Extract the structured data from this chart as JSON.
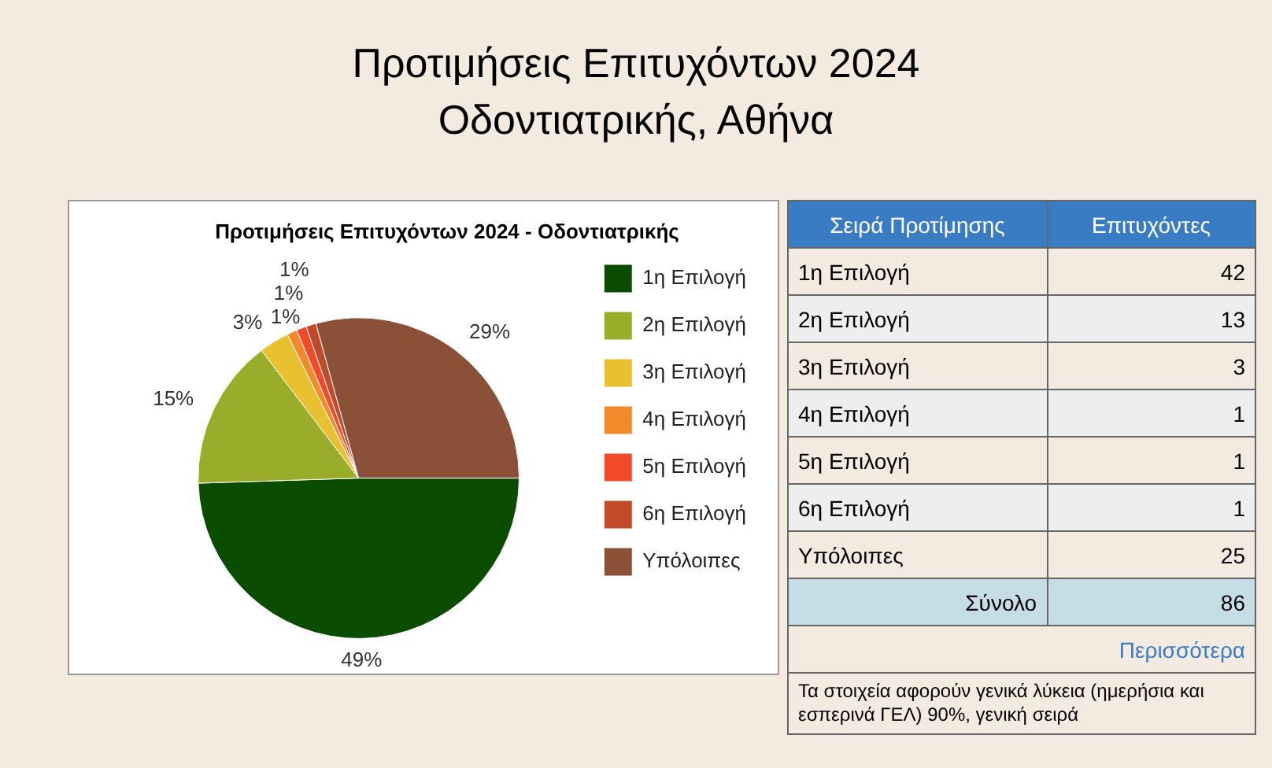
{
  "chart_data": [
    {
      "type": "pie",
      "title": "Προτιμήσεις Επιτυχόντων 2024",
      "subtitle": "Οδοντιατρικής, Αθήνα",
      "categories": [
        "1η Επιλογή",
        "2η Επιλογή",
        "3η Επιλογή",
        "4η Επιλογή",
        "5η Επιλογή",
        "6η Επιλογή",
        "Υπόλοιπες"
      ],
      "values": [
        49,
        15,
        3,
        1,
        1,
        1,
        29
      ],
      "colors": [
        "#0b4d00",
        "#9aad2a",
        "#e8c030",
        "#f08a2a",
        "#f04a2a",
        "#c04a2a",
        "#8a5038"
      ],
      "value_labels": [
        "49%",
        "15%",
        "3%",
        "1%",
        "1%",
        "1%",
        "29%"
      ],
      "legend": "right",
      "annotations": [
        "Προτιμήσεις Επιτυχόντων 2024 - Οδοντιατρικής"
      ]
    },
    {
      "type": "other",
      "categories": [
        "1η Επιλογή",
        "2η Επιλογή",
        "3η Επιλογή",
        "4η Επιλογή",
        "5η Επιλογή",
        "6η Επιλογή",
        "Υπόλοιπες"
      ],
      "values": [
        42,
        13,
        3,
        1,
        1,
        1,
        25
      ],
      "data_labels": true,
      "totals": [
        "86"
      ],
      "annotations": [
        "Σειρά Προτίμησης",
        "Επιτυχόντες",
        "Σύνολο",
        "Περισσότερα",
        "Τα στοιχεία αφορούν γενικά λύκεια (ημερήσια και εσπερινά ΓΕΛ) 90%, γενική σειρά"
      ]
    }
  ]
}
